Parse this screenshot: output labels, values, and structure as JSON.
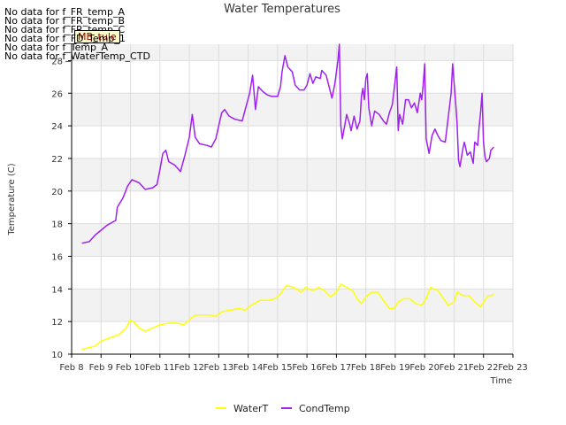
{
  "no_data_notes": [
    "No data for f_FR_temp_A",
    "No data for f_FR_temp_B",
    "No data for f_FR_temp_C",
    "No data for f_FD_Temp_1",
    "No data for f_Temp_A",
    "No data for f_WaterTemp_CTD"
  ],
  "flag_label": "MB_tule",
  "chart_data": {
    "type": "line",
    "title": "Water Temperatures",
    "xlabel": "Time",
    "ylabel": "Temperature (C)",
    "xlim": [
      8,
      23
    ],
    "ylim": [
      10,
      29
    ],
    "x_ticks": [
      8,
      9,
      10,
      11,
      12,
      13,
      14,
      15,
      16,
      17,
      18,
      19,
      20,
      21,
      22,
      23
    ],
    "x_tick_labels": [
      "Feb 8",
      "Feb 9",
      "Feb 10",
      "Feb 11",
      "Feb 12",
      "Feb 13",
      "Feb 14",
      "Feb 15",
      "Feb 16",
      "Feb 17",
      "Feb 18",
      "Feb 19",
      "Feb 20",
      "Feb 21",
      "Feb 22",
      "Feb 23"
    ],
    "y_ticks": [
      10,
      12,
      14,
      16,
      18,
      20,
      22,
      24,
      26,
      28
    ],
    "y_tick_labels": [
      "10",
      "12",
      "14",
      "16",
      "18",
      "20",
      "22",
      "24",
      "26",
      "28"
    ],
    "grid": true,
    "banded_background": true,
    "legend_position": "bottom-center",
    "series": [
      {
        "name": "WaterT",
        "color": "#ffff00",
        "points": [
          [
            8.35,
            10.3
          ],
          [
            8.6,
            10.4
          ],
          [
            8.8,
            10.5
          ],
          [
            9.0,
            10.8
          ],
          [
            9.3,
            11.0
          ],
          [
            9.6,
            11.2
          ],
          [
            9.85,
            11.6
          ],
          [
            10.0,
            12.1
          ],
          [
            10.15,
            11.9
          ],
          [
            10.3,
            11.6
          ],
          [
            10.5,
            11.4
          ],
          [
            10.75,
            11.6
          ],
          [
            11.0,
            11.8
          ],
          [
            11.3,
            11.9
          ],
          [
            11.6,
            11.9
          ],
          [
            11.8,
            11.8
          ],
          [
            12.0,
            12.1
          ],
          [
            12.2,
            12.4
          ],
          [
            12.45,
            12.4
          ],
          [
            12.7,
            12.4
          ],
          [
            12.9,
            12.3
          ],
          [
            13.1,
            12.6
          ],
          [
            13.4,
            12.7
          ],
          [
            13.7,
            12.8
          ],
          [
            13.9,
            12.7
          ],
          [
            14.1,
            13.0
          ],
          [
            14.4,
            13.3
          ],
          [
            14.7,
            13.3
          ],
          [
            14.9,
            13.4
          ],
          [
            15.1,
            13.7
          ],
          [
            15.3,
            14.2
          ],
          [
            15.55,
            14.1
          ],
          [
            15.8,
            13.8
          ],
          [
            15.95,
            14.1
          ],
          [
            16.2,
            13.9
          ],
          [
            16.4,
            14.1
          ],
          [
            16.6,
            13.9
          ],
          [
            16.8,
            13.5
          ],
          [
            17.0,
            13.8
          ],
          [
            17.15,
            14.3
          ],
          [
            17.35,
            14.1
          ],
          [
            17.55,
            13.9
          ],
          [
            17.7,
            13.4
          ],
          [
            17.85,
            13.1
          ],
          [
            18.0,
            13.5
          ],
          [
            18.2,
            13.8
          ],
          [
            18.4,
            13.8
          ],
          [
            18.6,
            13.3
          ],
          [
            18.8,
            12.8
          ],
          [
            18.95,
            12.8
          ],
          [
            19.1,
            13.2
          ],
          [
            19.3,
            13.4
          ],
          [
            19.5,
            13.4
          ],
          [
            19.7,
            13.1
          ],
          [
            19.9,
            13.0
          ],
          [
            20.05,
            13.4
          ],
          [
            20.2,
            14.1
          ],
          [
            20.45,
            13.9
          ],
          [
            20.6,
            13.5
          ],
          [
            20.8,
            13.0
          ],
          [
            21.0,
            13.2
          ],
          [
            21.1,
            13.8
          ],
          [
            21.3,
            13.6
          ],
          [
            21.5,
            13.6
          ],
          [
            21.7,
            13.2
          ],
          [
            21.9,
            12.9
          ],
          [
            22.05,
            13.3
          ],
          [
            22.15,
            13.6
          ],
          [
            22.3,
            13.6
          ],
          [
            22.35,
            13.7
          ]
        ]
      },
      {
        "name": "CondTemp",
        "color": "#a020f0",
        "points": [
          [
            8.35,
            16.8
          ],
          [
            8.6,
            16.9
          ],
          [
            8.8,
            17.3
          ],
          [
            9.0,
            17.6
          ],
          [
            9.2,
            17.9
          ],
          [
            9.5,
            18.2
          ],
          [
            9.55,
            19.0
          ],
          [
            9.75,
            19.6
          ],
          [
            9.9,
            20.3
          ],
          [
            10.05,
            20.7
          ],
          [
            10.3,
            20.5
          ],
          [
            10.5,
            20.1
          ],
          [
            10.75,
            20.2
          ],
          [
            10.9,
            20.4
          ],
          [
            11.0,
            21.3
          ],
          [
            11.1,
            22.3
          ],
          [
            11.2,
            22.5
          ],
          [
            11.3,
            21.8
          ],
          [
            11.5,
            21.6
          ],
          [
            11.7,
            21.2
          ],
          [
            11.85,
            22.2
          ],
          [
            12.0,
            23.3
          ],
          [
            12.1,
            24.7
          ],
          [
            12.2,
            23.3
          ],
          [
            12.35,
            22.9
          ],
          [
            12.6,
            22.8
          ],
          [
            12.75,
            22.7
          ],
          [
            12.9,
            23.2
          ],
          [
            13.0,
            24.0
          ],
          [
            13.1,
            24.8
          ],
          [
            13.2,
            25.0
          ],
          [
            13.35,
            24.6
          ],
          [
            13.55,
            24.4
          ],
          [
            13.8,
            24.3
          ],
          [
            13.9,
            25.0
          ],
          [
            14.05,
            26.0
          ],
          [
            14.15,
            27.1
          ],
          [
            14.25,
            25.0
          ],
          [
            14.35,
            26.4
          ],
          [
            14.5,
            26.1
          ],
          [
            14.65,
            25.9
          ],
          [
            14.8,
            25.8
          ],
          [
            15.0,
            25.8
          ],
          [
            15.1,
            26.4
          ],
          [
            15.15,
            27.3
          ],
          [
            15.25,
            28.3
          ],
          [
            15.35,
            27.6
          ],
          [
            15.5,
            27.3
          ],
          [
            15.6,
            26.5
          ],
          [
            15.75,
            26.2
          ],
          [
            15.9,
            26.2
          ],
          [
            16.0,
            26.5
          ],
          [
            16.1,
            27.2
          ],
          [
            16.2,
            26.6
          ],
          [
            16.3,
            27.0
          ],
          [
            16.45,
            26.9
          ],
          [
            16.5,
            27.4
          ],
          [
            16.65,
            27.1
          ],
          [
            16.75,
            26.4
          ],
          [
            16.85,
            25.7
          ],
          [
            16.95,
            26.6
          ],
          [
            17.05,
            28.0
          ],
          [
            17.1,
            29.0
          ],
          [
            17.15,
            24.0
          ],
          [
            17.2,
            23.2
          ],
          [
            17.3,
            24.2
          ],
          [
            17.35,
            24.7
          ],
          [
            17.45,
            24.1
          ],
          [
            17.5,
            23.7
          ],
          [
            17.6,
            24.6
          ],
          [
            17.7,
            23.8
          ],
          [
            17.8,
            24.3
          ],
          [
            17.85,
            25.8
          ],
          [
            17.9,
            26.3
          ],
          [
            17.95,
            25.6
          ],
          [
            18.0,
            26.9
          ],
          [
            18.05,
            27.2
          ],
          [
            18.1,
            25.1
          ],
          [
            18.2,
            24.0
          ],
          [
            18.3,
            24.9
          ],
          [
            18.45,
            24.7
          ],
          [
            18.6,
            24.3
          ],
          [
            18.7,
            24.1
          ],
          [
            18.8,
            24.8
          ],
          [
            18.9,
            25.3
          ],
          [
            19.0,
            26.8
          ],
          [
            19.05,
            27.6
          ],
          [
            19.1,
            23.7
          ],
          [
            19.15,
            24.7
          ],
          [
            19.25,
            24.1
          ],
          [
            19.35,
            25.6
          ],
          [
            19.45,
            25.6
          ],
          [
            19.55,
            25.1
          ],
          [
            19.65,
            25.4
          ],
          [
            19.75,
            24.8
          ],
          [
            19.85,
            26.0
          ],
          [
            19.9,
            25.6
          ],
          [
            19.95,
            26.5
          ],
          [
            20.0,
            27.8
          ],
          [
            20.05,
            23.2
          ],
          [
            20.15,
            22.3
          ],
          [
            20.25,
            23.4
          ],
          [
            20.35,
            23.8
          ],
          [
            20.45,
            23.4
          ],
          [
            20.55,
            23.1
          ],
          [
            20.7,
            23.0
          ],
          [
            20.8,
            24.5
          ],
          [
            20.9,
            26.0
          ],
          [
            20.95,
            27.8
          ],
          [
            21.05,
            25.5
          ],
          [
            21.1,
            24.2
          ],
          [
            21.15,
            21.9
          ],
          [
            21.2,
            21.5
          ],
          [
            21.3,
            22.6
          ],
          [
            21.35,
            23.0
          ],
          [
            21.45,
            22.2
          ],
          [
            21.55,
            22.4
          ],
          [
            21.65,
            21.7
          ],
          [
            21.7,
            23.0
          ],
          [
            21.8,
            22.8
          ],
          [
            21.85,
            23.9
          ],
          [
            21.9,
            24.8
          ],
          [
            21.95,
            26.0
          ],
          [
            22.0,
            23.0
          ],
          [
            22.05,
            22.1
          ],
          [
            22.1,
            21.8
          ],
          [
            22.2,
            22.0
          ],
          [
            22.25,
            22.5
          ],
          [
            22.35,
            22.7
          ]
        ]
      }
    ]
  }
}
